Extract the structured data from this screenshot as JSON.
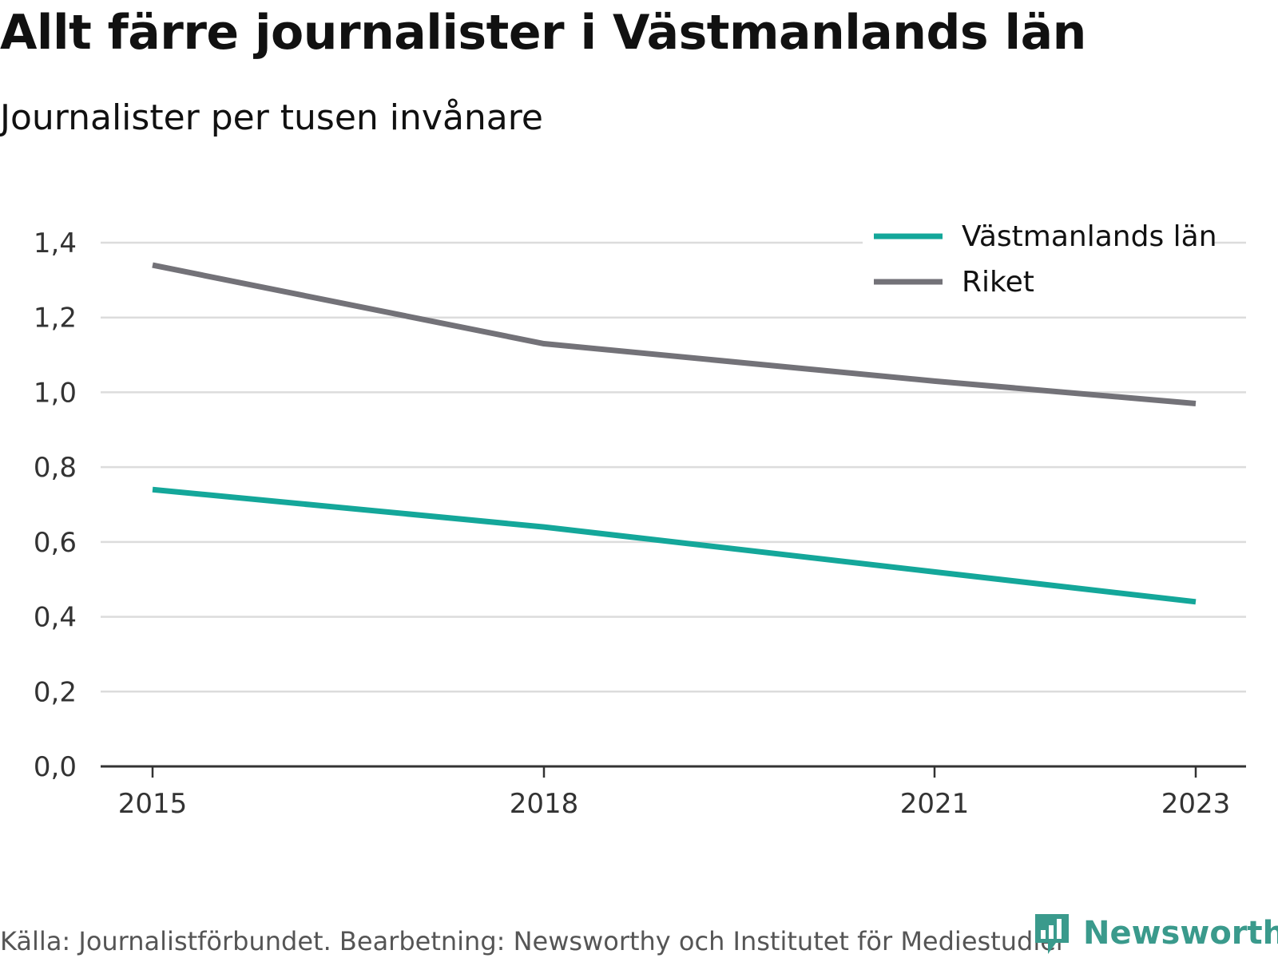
{
  "header": {
    "title": "Allt färre journalister i Västmanlands län",
    "subtitle": "Journalister per tusen invånare"
  },
  "footer": {
    "source": "Källa: Journalistförbundet. Bearbetning: Newsworthy och Institutet för Mediestudier",
    "brand": "Newsworthy"
  },
  "chart_data": {
    "type": "line",
    "x": [
      2015,
      2018,
      2021,
      2023
    ],
    "x_tick_labels": [
      "2015",
      "2018",
      "2021",
      "2023"
    ],
    "y_ticks": [
      0,
      0.2,
      0.4,
      0.6,
      0.8,
      1.0,
      1.2,
      1.4
    ],
    "y_tick_labels": [
      "0,0",
      "0,2",
      "0,4",
      "0,6",
      "0,8",
      "1,0",
      "1,2",
      "1,4"
    ],
    "ylim": [
      0,
      1.4
    ],
    "grid": true,
    "legend_position": "top-right",
    "series": [
      {
        "name": "Västmanlands län",
        "color": "#14a79a",
        "values": [
          0.74,
          0.64,
          0.52,
          0.44
        ]
      },
      {
        "name": "Riket",
        "color": "#737278",
        "values": [
          1.34,
          1.13,
          1.03,
          0.97
        ]
      }
    ]
  }
}
